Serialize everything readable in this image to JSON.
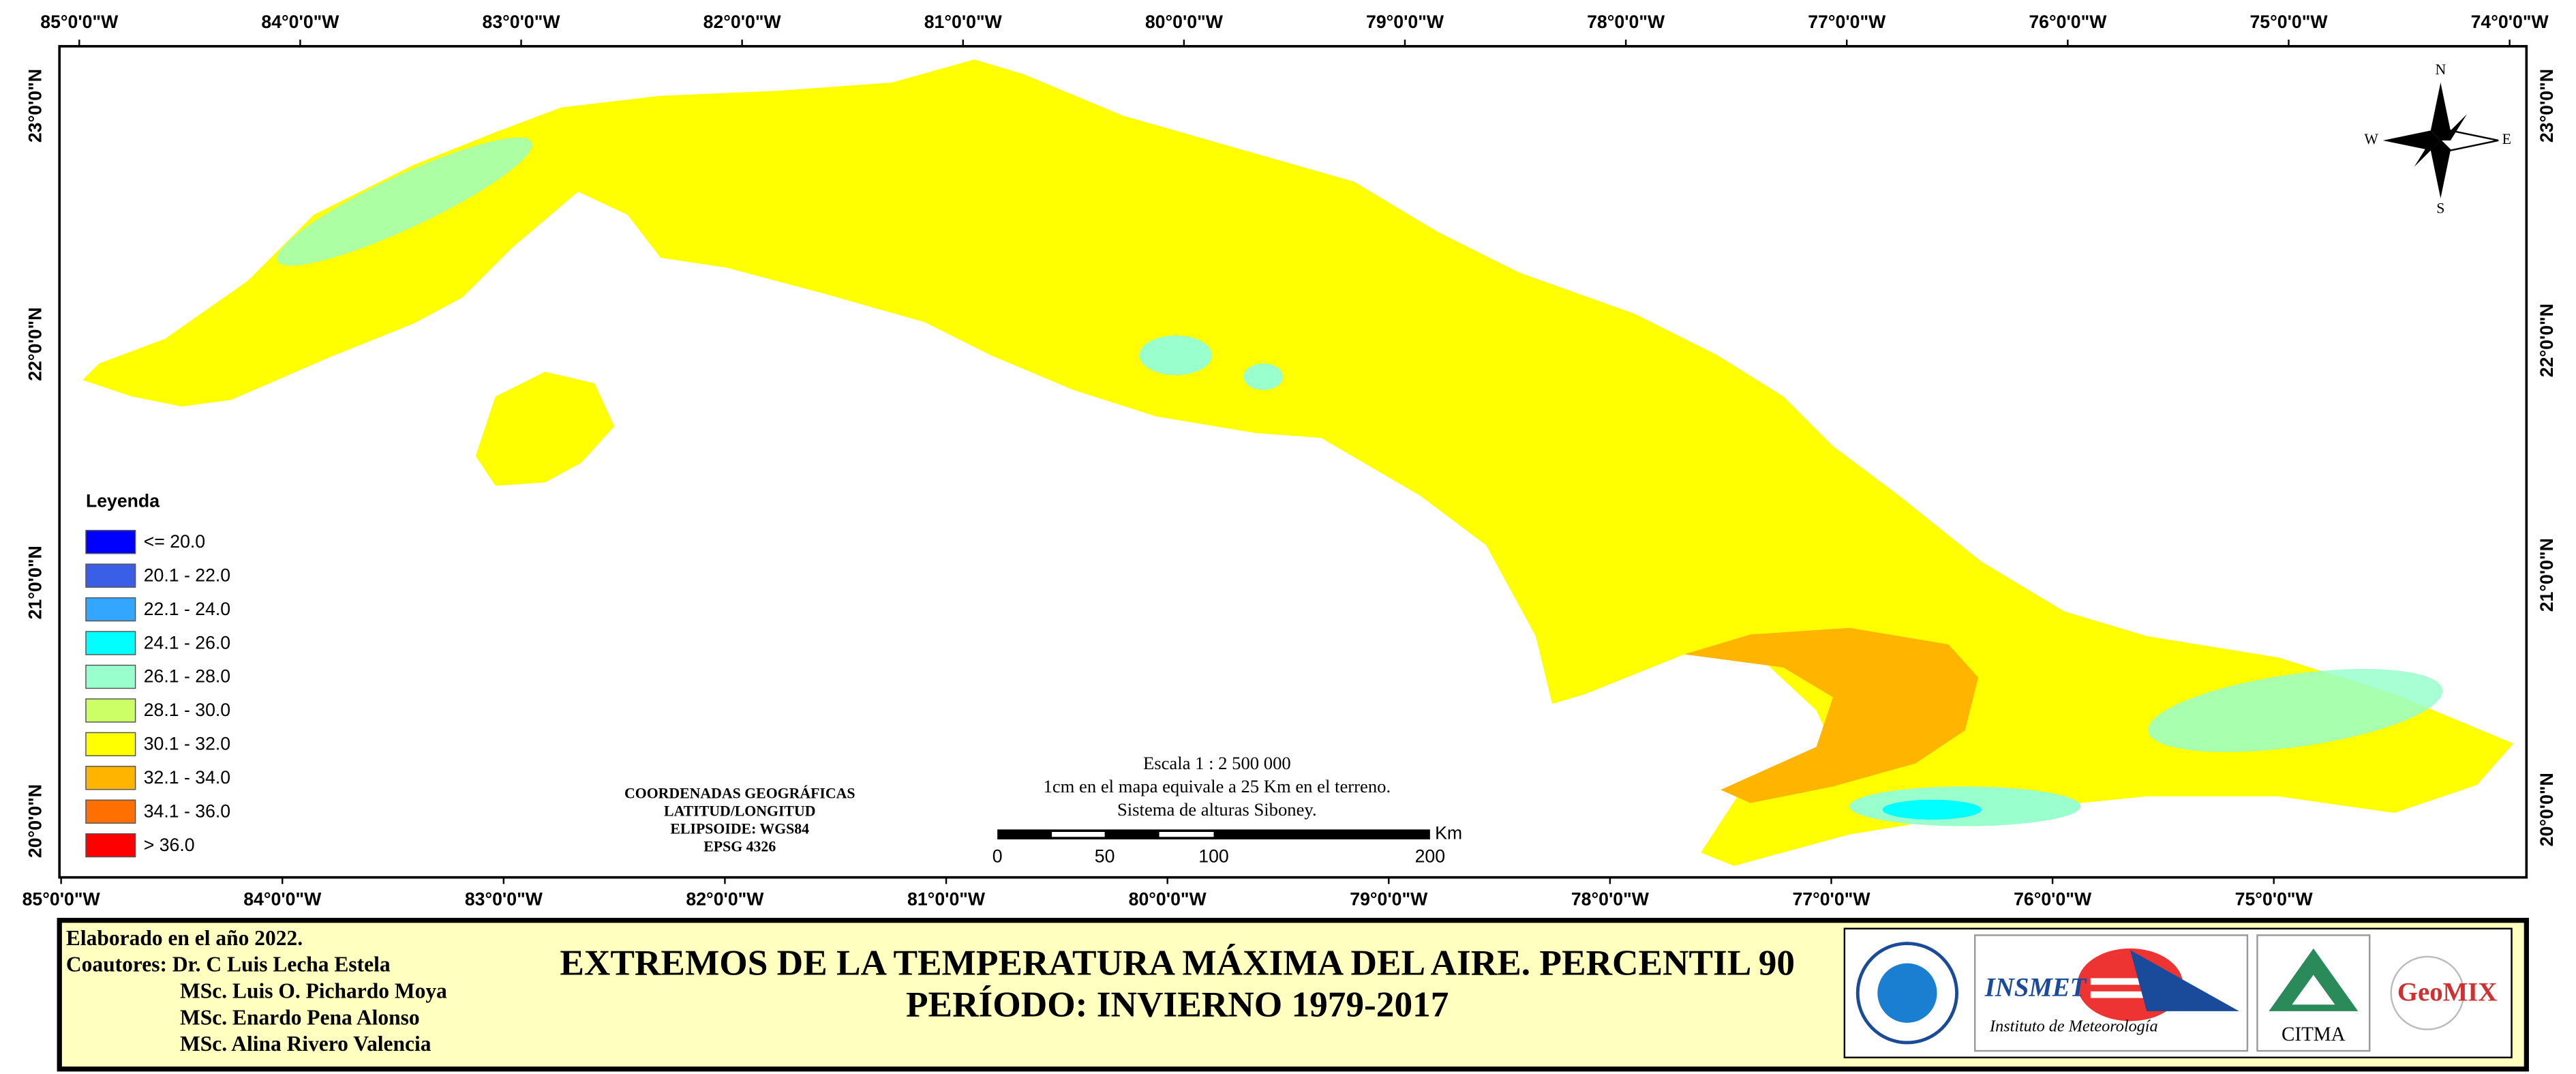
{
  "map": {
    "longitude_labels_top": [
      "85°0'0\"W",
      "84°0'0\"W",
      "83°0'0\"W",
      "82°0'0\"W",
      "81°0'0\"W",
      "80°0'0\"W",
      "79°0'0\"W",
      "78°0'0\"W",
      "77°0'0\"W",
      "76°0'0\"W",
      "75°0'0\"W",
      "74°0'0\"W"
    ],
    "longitude_labels_bottom": [
      "85°0'0\"W",
      "84°0'0\"W",
      "83°0'0\"W",
      "82°0'0\"W",
      "81°0'0\"W",
      "80°0'0\"W",
      "79°0'0\"W",
      "78°0'0\"W",
      "77°0'0\"W",
      "76°0'0\"W",
      "75°0'0\"W"
    ],
    "latitude_labels_left": [
      "23°0'0\"N",
      "22°0'0\"N",
      "21°0'0\"N",
      "20°0'0\"N"
    ],
    "latitude_labels_right": [
      "23°0'0\"N",
      "22°0'0\"N",
      "21°0'0\"N",
      "20°0'0\"N"
    ],
    "compass": {
      "n": "N",
      "s": "S",
      "w": "W",
      "e": "E"
    },
    "legend": {
      "title": "Leyenda",
      "items": [
        {
          "label": "<= 20.0",
          "color": "#0000ff"
        },
        {
          "label": "20.1 - 22.0",
          "color": "#3a5fe6"
        },
        {
          "label": "22.1 - 24.0",
          "color": "#33a6ff"
        },
        {
          "label": "24.1 - 26.0",
          "color": "#00ffff"
        },
        {
          "label": "26.1 - 28.0",
          "color": "#99ffcc"
        },
        {
          "label": "28.1 - 30.0",
          "color": "#ccff66"
        },
        {
          "label": "30.1 - 32.0",
          "color": "#ffff00"
        },
        {
          "label": "32.1 - 34.0",
          "color": "#ffb400"
        },
        {
          "label": "34.1 - 36.0",
          "color": "#ff7000"
        },
        {
          "label": "> 36.0",
          "color": "#ff0000"
        }
      ]
    },
    "coordinates_note": [
      "COORDENADAS GEOGRÁFICAS",
      "LATITUD/LONGITUD",
      "ELIPSOIDE: WGS84",
      "EPSG 4326"
    ],
    "scale": {
      "lines": [
        "Escala 1 : 2 500 000",
        "1cm en el mapa equivale a 25 Km en el terreno.",
        "Sistema de alturas Siboney."
      ],
      "ticks": [
        "0",
        "50",
        "100",
        "200"
      ],
      "unit": "Km"
    }
  },
  "footer": {
    "credits": [
      "Elaborado en el año 2022.",
      "Coautores: Dr. C Luis Lecha Estela",
      "MSc. Luis O. Pichardo Moya",
      "MSc. Enardo Pena Alonso",
      "MSc. Alina Rivero Valencia"
    ],
    "title": [
      "EXTREMOS DE LA TEMPERATURA MÁXIMA DEL AIRE. PERCENTIL 90",
      "PERÍODO: INVIERNO 1979-2017"
    ],
    "logos": {
      "insmet": "INSMET",
      "insmet_sub": "Instituto de Meteorología",
      "citma": "CITMA",
      "geomix": "GeoMIX"
    }
  }
}
